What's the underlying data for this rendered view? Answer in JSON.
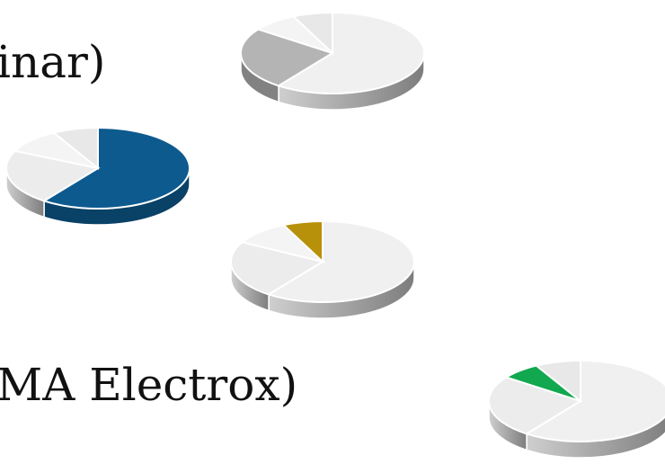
{
  "texts": {
    "top_partial": "inar)",
    "bottom_partial": "MA Electrox)"
  },
  "pies": [
    {
      "name": "pie-grey-top",
      "highlight_color": "#b4b4b4",
      "slices": [
        {
          "value": 60,
          "highlight": false
        },
        {
          "value": 25,
          "highlight": true
        },
        {
          "value": 8,
          "highlight": false
        },
        {
          "value": 7,
          "highlight": false
        }
      ]
    },
    {
      "name": "pie-blue",
      "highlight_color": "#0d5a8f",
      "slices": [
        {
          "value": 60,
          "highlight": true
        },
        {
          "value": 22,
          "highlight": false
        },
        {
          "value": 10,
          "highlight": false
        },
        {
          "value": 8,
          "highlight": false
        }
      ]
    },
    {
      "name": "pie-gold",
      "highlight_color": "#b8910a",
      "slices": [
        {
          "value": 60,
          "highlight": false
        },
        {
          "value": 23,
          "highlight": false
        },
        {
          "value": 10,
          "highlight": false
        },
        {
          "value": 7,
          "highlight": true
        }
      ]
    },
    {
      "name": "pie-green",
      "highlight_color": "#12a84f",
      "slices": [
        {
          "value": 60,
          "highlight": false
        },
        {
          "value": 25,
          "highlight": false
        },
        {
          "value": 7,
          "highlight": true
        },
        {
          "value": 8,
          "highlight": false
        }
      ]
    }
  ]
}
